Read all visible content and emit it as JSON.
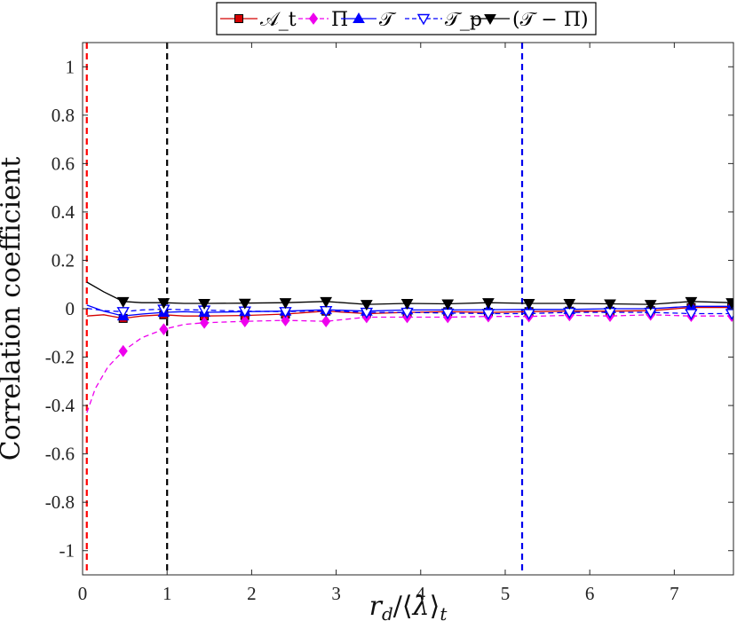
{
  "chart_data": {
    "type": "line",
    "title": "",
    "xlabel": "r_d/⟨λ⟩_t",
    "ylabel": "Correlation coefficient",
    "xlim": [
      0,
      7.7
    ],
    "ylim": [
      -1.1,
      1.1
    ],
    "x_ticks": [
      0,
      1,
      2,
      3,
      4,
      5,
      6,
      7
    ],
    "y_ticks": [
      -1,
      -0.8,
      -0.6,
      -0.4,
      -0.2,
      0,
      0.2,
      0.4,
      0.6,
      0.8,
      1
    ],
    "y_tick_labels": [
      "-1",
      "-0.8",
      "-0.6",
      "-0.4",
      "-0.2",
      "0",
      "0.2",
      "0.4",
      "0.6",
      "0.8",
      "1"
    ],
    "grid": false,
    "legend_position": "top-center",
    "vertical_lines": [
      {
        "x": 0.05,
        "color": "#ff0000",
        "style": "dashed"
      },
      {
        "x": 1.0,
        "color": "#000000",
        "style": "dashed"
      },
      {
        "x": 5.2,
        "color": "#0000ee",
        "style": "dashed"
      }
    ],
    "marker_x": [
      0.48,
      0.96,
      1.44,
      1.92,
      2.4,
      2.88,
      3.36,
      3.84,
      4.32,
      4.8,
      5.28,
      5.76,
      6.24,
      6.72,
      7.2,
      7.68
    ],
    "series": [
      {
        "name": "𝒜_t",
        "color": "#d40000",
        "style": "solid",
        "marker": "square",
        "marker_fill": "#d40000",
        "x": [
          0.05,
          0.25,
          0.48,
          0.7,
          0.96,
          1.2,
          1.44,
          1.92,
          2.4,
          2.88,
          3.36,
          3.84,
          4.32,
          4.8,
          5.28,
          5.76,
          6.24,
          6.72,
          7.2,
          7.68
        ],
        "values": [
          -0.03,
          -0.025,
          -0.04,
          -0.03,
          -0.025,
          -0.03,
          -0.03,
          -0.028,
          -0.022,
          -0.01,
          -0.02,
          -0.015,
          -0.012,
          -0.015,
          -0.012,
          -0.01,
          -0.01,
          -0.008,
          0.005,
          0.005
        ]
      },
      {
        "name": "Π",
        "color": "#ee00ee",
        "style": "dashed",
        "marker": "diamond",
        "marker_fill": "#ee00ee",
        "x": [
          0.05,
          0.15,
          0.3,
          0.48,
          0.7,
          0.96,
          1.2,
          1.44,
          1.92,
          2.4,
          2.88,
          3.36,
          3.84,
          4.32,
          4.8,
          5.28,
          5.76,
          6.24,
          6.72,
          7.2,
          7.68
        ],
        "values": [
          -0.43,
          -0.33,
          -0.24,
          -0.175,
          -0.12,
          -0.085,
          -0.065,
          -0.058,
          -0.052,
          -0.048,
          -0.052,
          -0.035,
          -0.035,
          -0.035,
          -0.032,
          -0.032,
          -0.027,
          -0.03,
          -0.025,
          -0.03,
          -0.03
        ]
      },
      {
        "name": "𝒯",
        "color": "#0000ff",
        "style": "solid",
        "marker": "triangle-up",
        "marker_fill": "#0000ff",
        "x": [
          0.05,
          0.25,
          0.48,
          0.7,
          0.96,
          1.2,
          1.44,
          1.92,
          2.4,
          2.88,
          3.36,
          3.84,
          4.32,
          4.8,
          5.28,
          5.76,
          6.24,
          6.72,
          7.2,
          7.68
        ],
        "values": [
          0.015,
          -0.01,
          -0.03,
          -0.022,
          -0.015,
          -0.012,
          -0.015,
          -0.012,
          -0.01,
          -0.004,
          -0.01,
          -0.005,
          -0.005,
          -0.004,
          -0.003,
          -0.003,
          0.0,
          0.0,
          0.01,
          0.01
        ]
      },
      {
        "name": "𝒯_p",
        "color": "#0000ff",
        "style": "dashed",
        "marker": "triangle-down",
        "marker_fill": "#ffffff",
        "x": [
          0.05,
          0.25,
          0.48,
          0.7,
          0.96,
          1.2,
          1.44,
          1.92,
          2.4,
          2.88,
          3.36,
          3.84,
          4.32,
          4.8,
          5.28,
          5.76,
          6.24,
          6.72,
          7.2,
          7.68
        ],
        "values": [
          0.002,
          -0.008,
          -0.012,
          -0.005,
          -0.002,
          -0.004,
          -0.006,
          -0.01,
          -0.012,
          -0.008,
          -0.015,
          -0.015,
          -0.018,
          -0.02,
          -0.02,
          -0.015,
          -0.015,
          -0.015,
          -0.02,
          -0.02
        ]
      },
      {
        "name": "(𝒯 − Π)",
        "color": "#000000",
        "style": "solid",
        "marker": "triangle-down",
        "marker_fill": "#000000",
        "x": [
          0.05,
          0.25,
          0.48,
          0.7,
          0.96,
          1.2,
          1.44,
          1.92,
          2.4,
          2.88,
          3.36,
          3.84,
          4.32,
          4.8,
          5.28,
          5.76,
          6.24,
          6.72,
          7.2,
          7.68
        ],
        "values": [
          0.11,
          0.07,
          0.03,
          0.025,
          0.025,
          0.022,
          0.022,
          0.023,
          0.025,
          0.03,
          0.018,
          0.022,
          0.02,
          0.025,
          0.022,
          0.022,
          0.02,
          0.018,
          0.03,
          0.025
        ]
      }
    ]
  }
}
